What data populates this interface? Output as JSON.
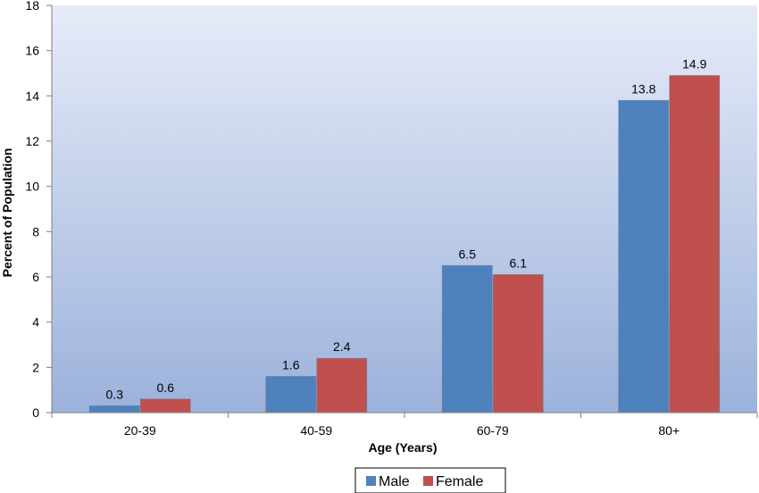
{
  "chart_data": {
    "type": "bar",
    "title": "",
    "xlabel": "Age (Years)",
    "ylabel": "Percent of Population",
    "categories": [
      "20-39",
      "40-59",
      "60-79",
      "80+"
    ],
    "series": [
      {
        "name": "Male",
        "color": "#4f81bd",
        "values": [
          0.3,
          1.6,
          6.5,
          13.8
        ],
        "labels": [
          "0.3",
          "1.6",
          "6.5",
          "13.8"
        ]
      },
      {
        "name": "Female",
        "color": "#c0504d",
        "values": [
          0.6,
          2.4,
          6.1,
          14.9
        ],
        "labels": [
          "0.6",
          "2.4",
          "6.1",
          "14.9"
        ]
      }
    ],
    "ylim": [
      0,
      18
    ],
    "yticks": [
      "0",
      "2",
      "4",
      "6",
      "8",
      "10",
      "12",
      "14",
      "16",
      "18"
    ],
    "grid": false,
    "legend_position": "bottom",
    "plot_background": {
      "top": "#e6ebf8",
      "bottom": "#9cb2db"
    }
  }
}
